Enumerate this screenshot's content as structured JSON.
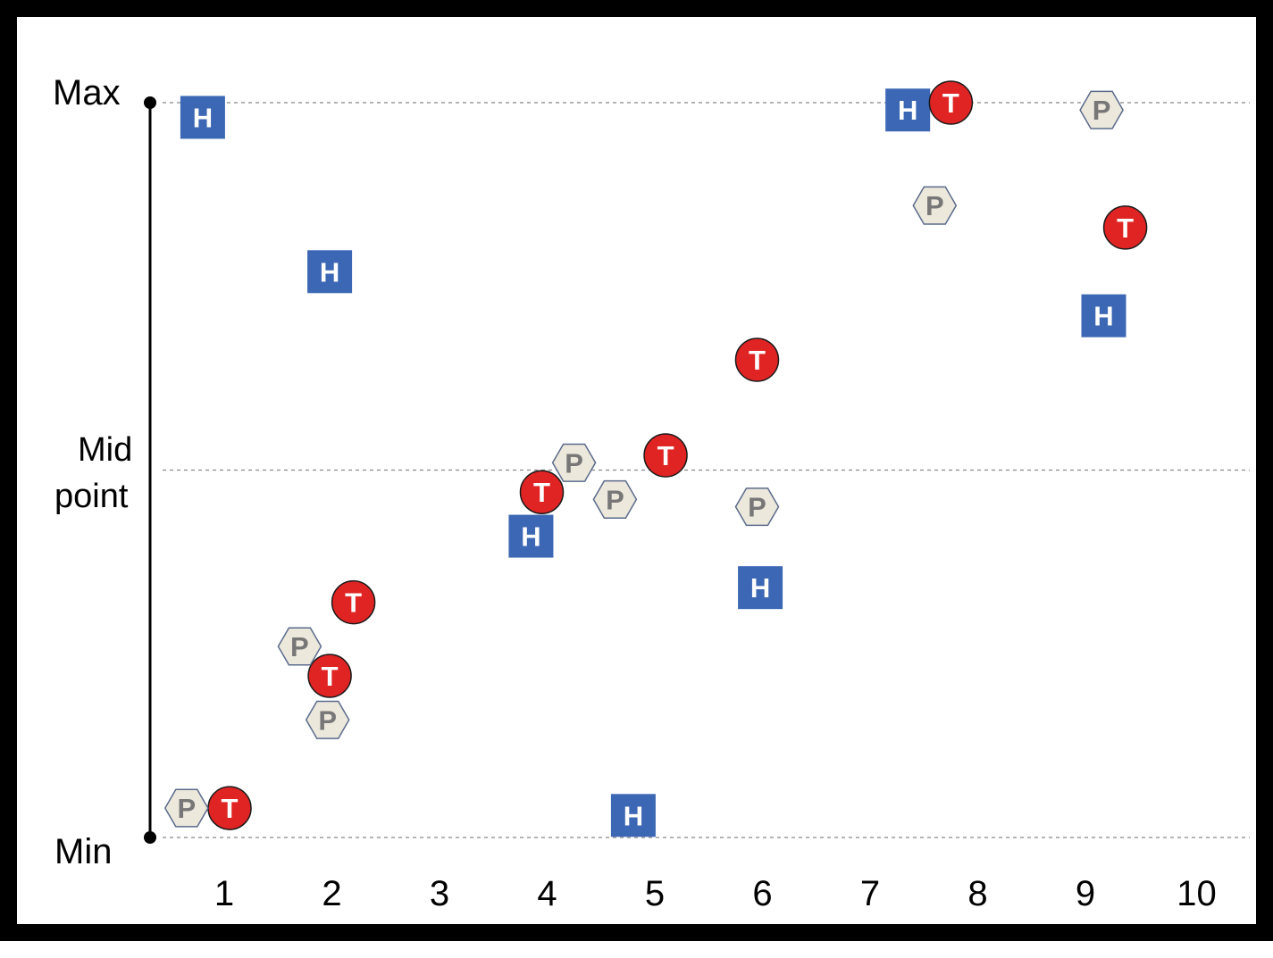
{
  "chart_data": {
    "type": "scatter",
    "title": "",
    "xlabel": "",
    "ylabel": "",
    "x_ticks": [
      "1",
      "2",
      "3",
      "4",
      "5",
      "6",
      "7",
      "8",
      "9",
      "10"
    ],
    "y_axis_labels": {
      "max": "Max",
      "mid_line1": "Mid",
      "mid_line2": "point",
      "min": "Min"
    },
    "xlim": [
      0.3,
      10.5
    ],
    "ylim": [
      0,
      1
    ],
    "grid": "dashed horizontal lines at Max, Mid point, Min",
    "legend": "none",
    "series": [
      {
        "name": "H",
        "shape": "square",
        "color": "#3c67b4",
        "text_color": "#ffffff",
        "points": [
          [
            0.8,
            0.98
          ],
          [
            1.98,
            0.77
          ],
          [
            3.85,
            0.41
          ],
          [
            4.8,
            0.03
          ],
          [
            5.98,
            0.34
          ],
          [
            7.35,
            0.99
          ],
          [
            9.17,
            0.71
          ]
        ]
      },
      {
        "name": "T",
        "shape": "circle",
        "color": "#e02424",
        "text_color": "#ffffff",
        "points": [
          [
            1.05,
            0.04
          ],
          [
            2.2,
            0.32
          ],
          [
            1.98,
            0.22
          ],
          [
            3.95,
            0.47
          ],
          [
            5.1,
            0.52
          ],
          [
            5.95,
            0.65
          ],
          [
            7.75,
            1.0
          ],
          [
            9.37,
            0.83
          ]
        ]
      },
      {
        "name": "P",
        "shape": "hexagon",
        "color": "#ede8dc",
        "text_color": "#777777",
        "points": [
          [
            0.65,
            0.04
          ],
          [
            1.7,
            0.26
          ],
          [
            1.96,
            0.16
          ],
          [
            4.25,
            0.51
          ],
          [
            4.63,
            0.46
          ],
          [
            5.95,
            0.45
          ],
          [
            7.6,
            0.86
          ],
          [
            9.15,
            0.99
          ]
        ]
      }
    ]
  }
}
